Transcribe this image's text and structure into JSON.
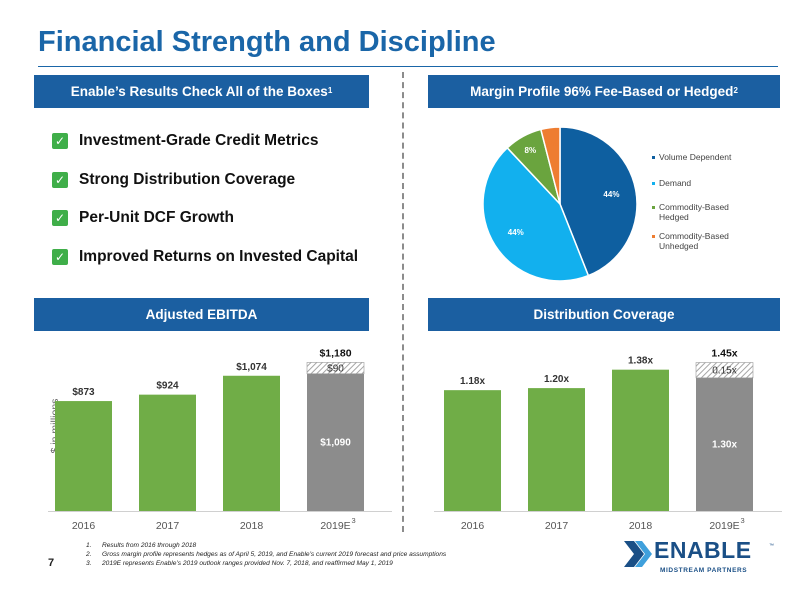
{
  "title": "Financial Strength and Discipline",
  "left_banner": {
    "text": "Enable’s Results Check All of the Boxes",
    "sup": "1"
  },
  "right_banner": {
    "text": "Margin Profile 96% Fee-Based or Hedged",
    "sup": "2"
  },
  "checklist": [
    "Investment-Grade Credit Metrics",
    "Strong Distribution Coverage",
    "Per-Unit DCF Growth",
    "Improved Returns on Invested Capital"
  ],
  "check_icon": "✓",
  "ebitda_banner": "Adjusted EBITDA",
  "coverage_banner": "Distribution Coverage",
  "colors": {
    "accent": "#1b5fa1",
    "bar_green": "#70ad47",
    "bar_gray": "#8c8c8c",
    "check_green": "#3fae49",
    "pie": [
      "#0e5fa0",
      "#12b0ee",
      "#6aa43e",
      "#ee7d31"
    ]
  },
  "chart_data": [
    {
      "type": "pie",
      "slices": [
        {
          "label": "Volume Dependent",
          "value": 44,
          "text": "44%"
        },
        {
          "label": "Demand",
          "value": 44,
          "text": "44%"
        },
        {
          "label": "Commodity-Based Hedged",
          "value": 8,
          "text": "8%"
        },
        {
          "label": "Commodity-Based Unhedged",
          "value": 4,
          "text": "4%"
        }
      ],
      "legend": [
        "Volume Dependent",
        "Demand",
        "Commodity-Based Hedged",
        "Commodity-Based Unhedged"
      ],
      "legend_position": "right"
    },
    {
      "type": "bar",
      "stacked": true,
      "ylabel": "$ in millions",
      "categories": [
        "2016",
        "2017",
        "2018",
        "2019E"
      ],
      "category_superscripts": [
        "",
        "",
        "",
        "3"
      ],
      "series": [
        {
          "values": [
            873,
            924,
            1074,
            1090
          ],
          "labels": [
            "$873",
            "$924",
            "$1,074",
            "$1,090"
          ]
        },
        {
          "values": [
            0,
            0,
            0,
            90
          ],
          "labels": [
            "",
            "",
            "",
            "$90"
          ]
        }
      ],
      "totals": [
        "",
        "",
        "",
        "$1,180"
      ],
      "ylim": [
        0,
        1350
      ],
      "grid": false
    },
    {
      "type": "bar",
      "stacked": true,
      "categories": [
        "2016",
        "2017",
        "2018",
        "2019E"
      ],
      "category_superscripts": [
        "",
        "",
        "",
        "3"
      ],
      "series": [
        {
          "values": [
            1.18,
            1.2,
            1.38,
            1.3
          ],
          "labels": [
            "1.18x",
            "1.20x",
            "1.38x",
            "1.30x"
          ]
        },
        {
          "values": [
            0,
            0,
            0,
            0.15
          ],
          "labels": [
            "",
            "",
            "",
            "0.15x"
          ]
        }
      ],
      "totals": [
        "",
        "",
        "",
        "1.45x"
      ],
      "ylim": [
        0,
        1.66
      ],
      "grid": false
    }
  ],
  "footnotes": [
    {
      "num": "1.",
      "text": "Results from 2016 through 2018"
    },
    {
      "num": "2.",
      "text": "Gross margin profile represents hedges as of April 5, 2019, and Enable’s current 2019 forecast and price assumptions"
    },
    {
      "num": "3.",
      "text": "2019E represents Enable’s 2019 outlook ranges provided Nov. 7, 2018, and reaffirmed May 1, 2019"
    }
  ],
  "page_number": "7",
  "logo": {
    "word": "ENABLE",
    "tm": "™",
    "sub": "MIDSTREAM PARTNERS",
    "icon": "chevron-arrows-icon"
  }
}
